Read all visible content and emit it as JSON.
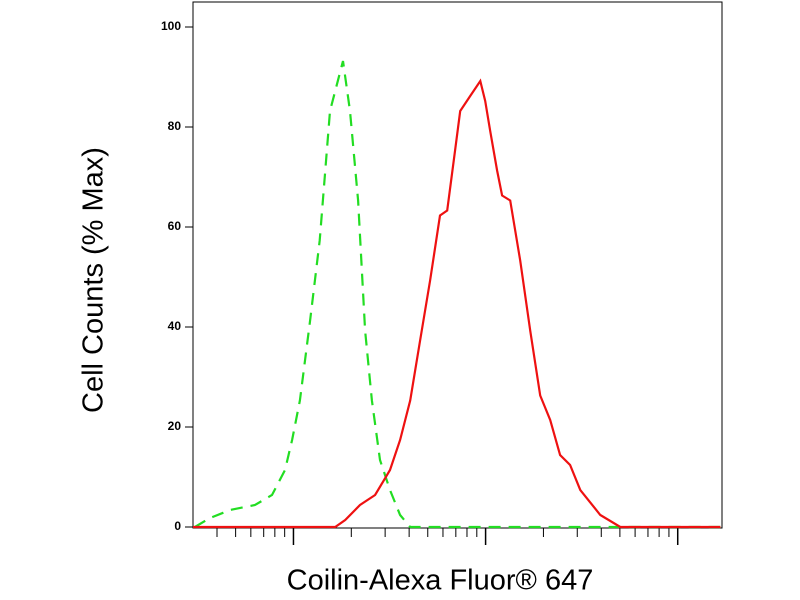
{
  "chart_data": {
    "type": "line",
    "x_label": "Coilin-Alexa Fluor® 647",
    "y_label": "Cell Counts (% Max)",
    "xscale": "log",
    "xlim": [
      30,
      17000
    ],
    "xticks": [
      100,
      1000,
      10000
    ],
    "xminor_ticks": [
      40,
      50,
      60,
      70,
      80,
      90,
      200,
      300,
      400,
      500,
      600,
      700,
      800,
      900,
      2000,
      3000,
      4000,
      5000,
      6000,
      7000,
      8000,
      9000
    ],
    "ylim": [
      0,
      105
    ],
    "yticks": [
      0,
      20,
      40,
      60,
      80,
      100
    ],
    "series": [
      {
        "color": "#22dd22",
        "dashed": true,
        "x": [
          30.7,
          36.8,
          46.8,
          63.1,
          77.3,
          90.4,
          98.4,
          108,
          122,
          137,
          155,
          165,
          181,
          197,
          217,
          236,
          256,
          282,
          318,
          359,
          405,
          514,
          16670
        ],
        "values": [
          0,
          1.8,
          3.4,
          4.4,
          6.4,
          11.4,
          17.4,
          25.3,
          41.3,
          57.3,
          83.2,
          87.2,
          93.2,
          83.2,
          65.3,
          39.3,
          25.3,
          13.4,
          7.4,
          2.4,
          0,
          0,
          0
        ]
      },
      {
        "color": "#ee1111",
        "dashed": false,
        "x": [
          30,
          165,
          186,
          222,
          266,
          318,
          359,
          405,
          456,
          514,
          579,
          631,
          693,
          738,
          832,
          938,
          995,
          1057,
          1148,
          1219,
          1343,
          1426,
          1514,
          1706,
          1923,
          2168,
          2443,
          2754,
          3112,
          3954,
          5023,
          16670
        ],
        "values": [
          0,
          0,
          1.4,
          4.4,
          6.4,
          11.4,
          17.4,
          25.3,
          37.3,
          49.3,
          62.3,
          63.3,
          75.2,
          83.2,
          86.2,
          89.2,
          85.2,
          79.2,
          71.3,
          66.3,
          65.3,
          59.3,
          53.3,
          39.3,
          26.3,
          21.4,
          14.4,
          12.4,
          7.4,
          2.4,
          0,
          0
        ]
      }
    ]
  }
}
